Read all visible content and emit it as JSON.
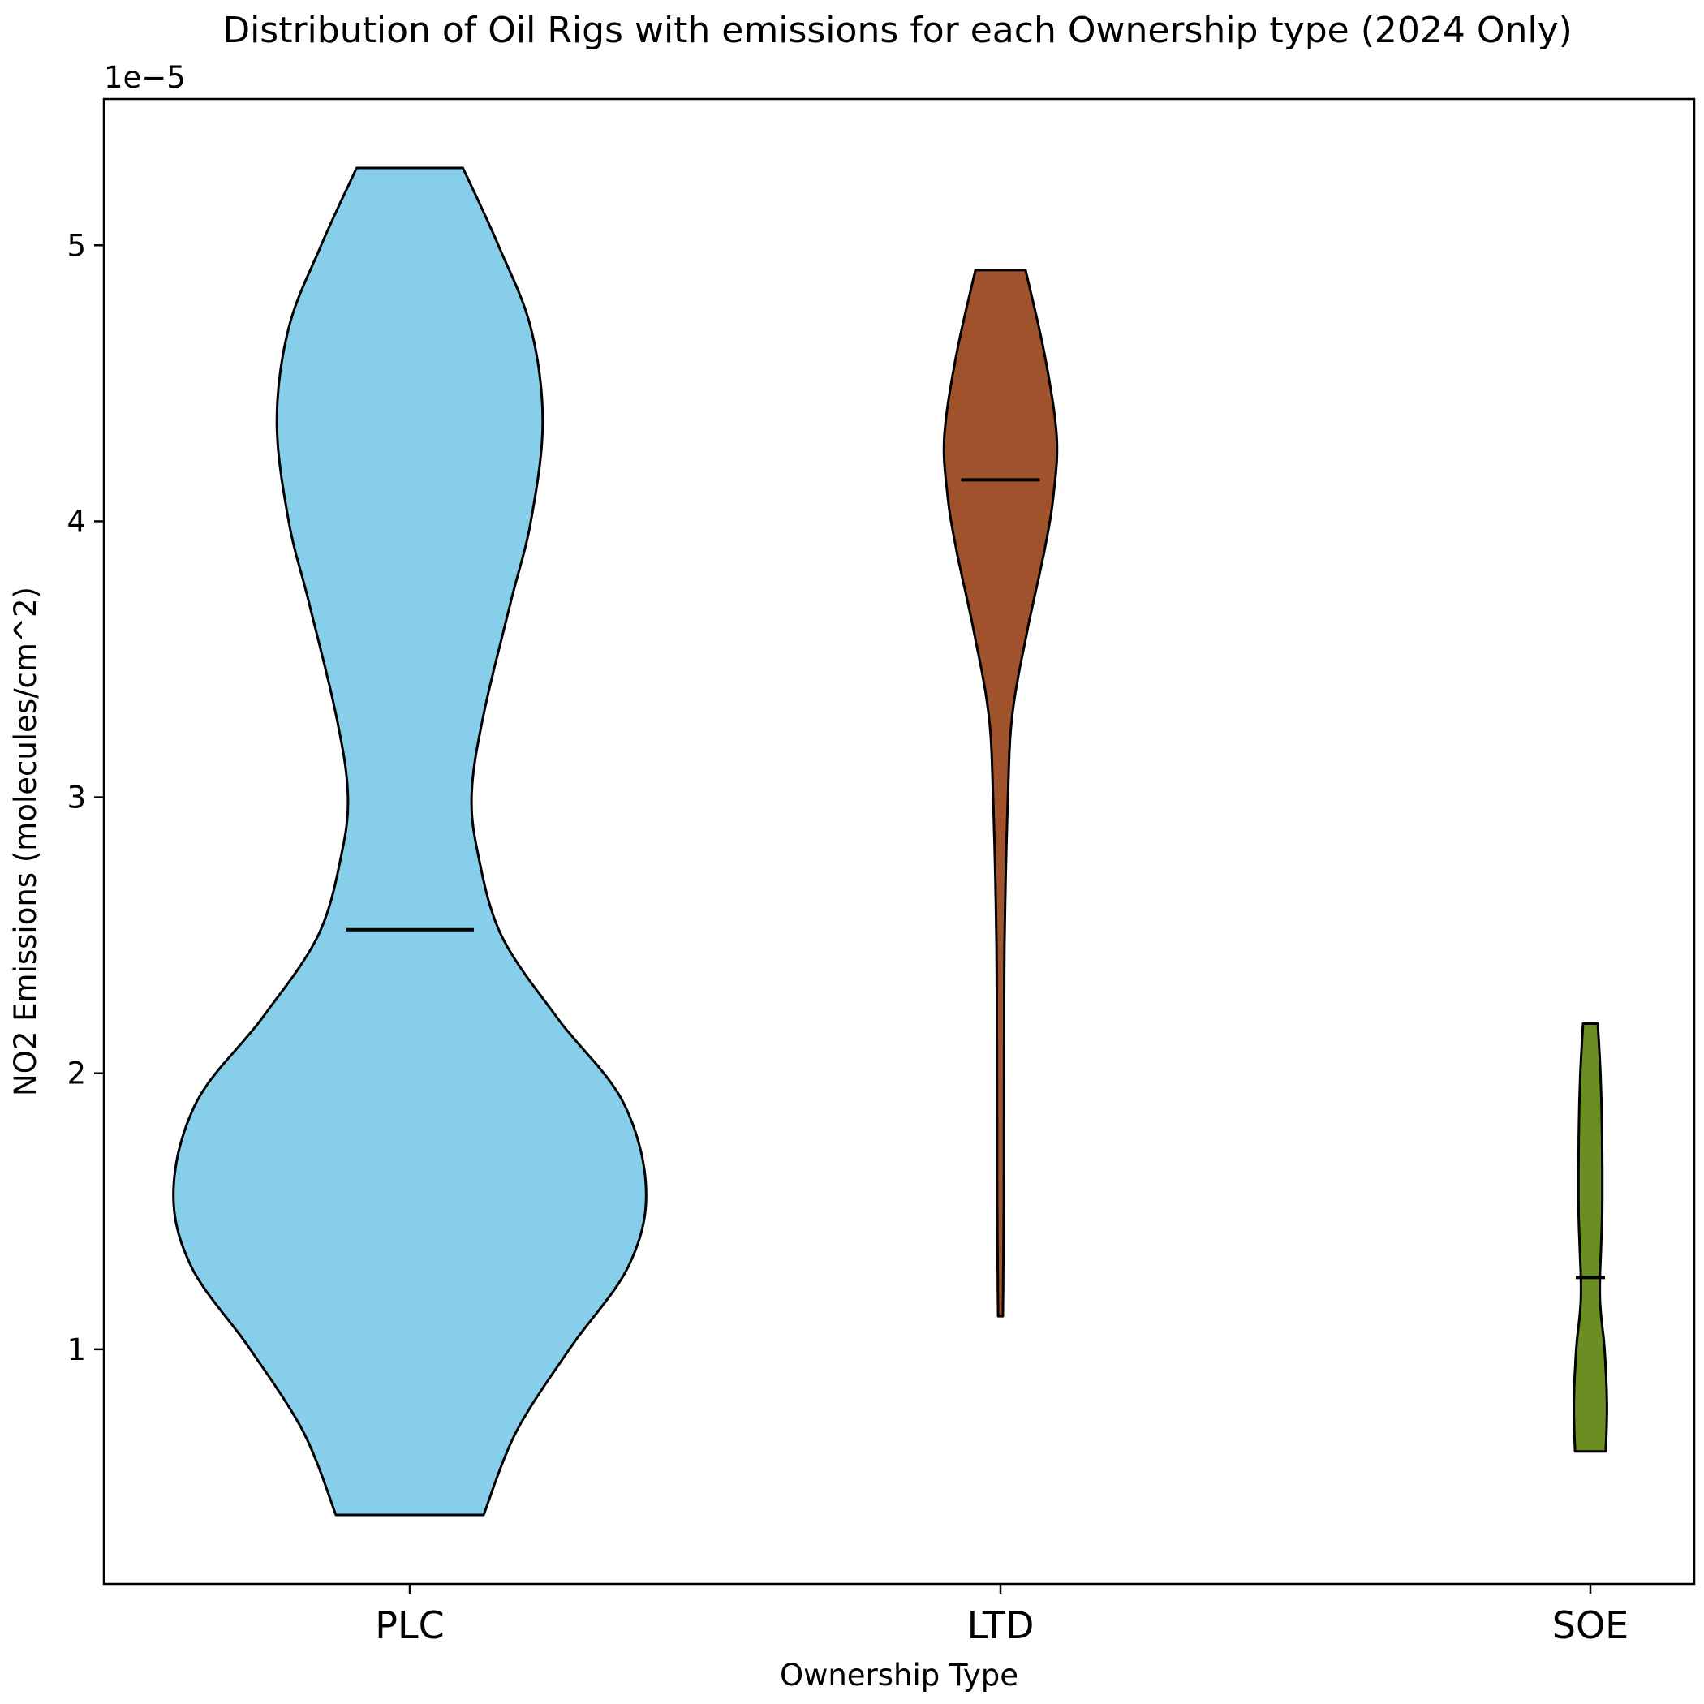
{
  "chart_data": {
    "type": "violin",
    "title": "Distribution of Oil Rigs with emissions for each Ownership type (2024 Only)",
    "xlabel": "Ownership Type",
    "ylabel": "NO2 Emissions (molecules/cm^2)",
    "y_offset_label": "1e−5",
    "y_scale": 1e-05,
    "ylim": [
      0.15,
      5.53
    ],
    "yticks": [
      1,
      2,
      3,
      4,
      5
    ],
    "categories": [
      "PLC",
      "LTD",
      "SOE"
    ],
    "grid": false,
    "series": [
      {
        "category": "PLC",
        "color": "#87CEEB",
        "min": 0.4,
        "max": 5.28,
        "median": 2.52,
        "profile": [
          [
            0.4,
            0.25
          ],
          [
            0.7,
            0.36
          ],
          [
            1.0,
            0.54
          ],
          [
            1.3,
            0.74
          ],
          [
            1.58,
            0.8
          ],
          [
            1.9,
            0.72
          ],
          [
            2.2,
            0.5
          ],
          [
            2.5,
            0.31
          ],
          [
            2.8,
            0.23
          ],
          [
            3.02,
            0.21
          ],
          [
            3.3,
            0.25
          ],
          [
            3.7,
            0.34
          ],
          [
            4.0,
            0.41
          ],
          [
            4.36,
            0.45
          ],
          [
            4.7,
            0.41
          ],
          [
            5.0,
            0.3
          ],
          [
            5.28,
            0.18
          ]
        ]
      },
      {
        "category": "LTD",
        "color": "#A0522D",
        "min": 1.12,
        "max": 4.91,
        "median": 4.15,
        "profile": [
          [
            1.12,
            0.008
          ],
          [
            1.5,
            0.011
          ],
          [
            2.0,
            0.012
          ],
          [
            2.5,
            0.014
          ],
          [
            3.0,
            0.025
          ],
          [
            3.3,
            0.04
          ],
          [
            3.6,
            0.09
          ],
          [
            3.9,
            0.15
          ],
          [
            4.1,
            0.18
          ],
          [
            4.31,
            0.19
          ],
          [
            4.6,
            0.15
          ],
          [
            4.91,
            0.085
          ]
        ]
      },
      {
        "category": "SOE",
        "color": "#6B8E23",
        "min": 0.63,
        "max": 2.18,
        "median": 1.26,
        "profile": [
          [
            0.63,
            0.052
          ],
          [
            0.8,
            0.056
          ],
          [
            1.0,
            0.048
          ],
          [
            1.2,
            0.032
          ],
          [
            1.5,
            0.04
          ],
          [
            1.8,
            0.039
          ],
          [
            2.0,
            0.034
          ],
          [
            2.18,
            0.025
          ]
        ]
      }
    ]
  }
}
